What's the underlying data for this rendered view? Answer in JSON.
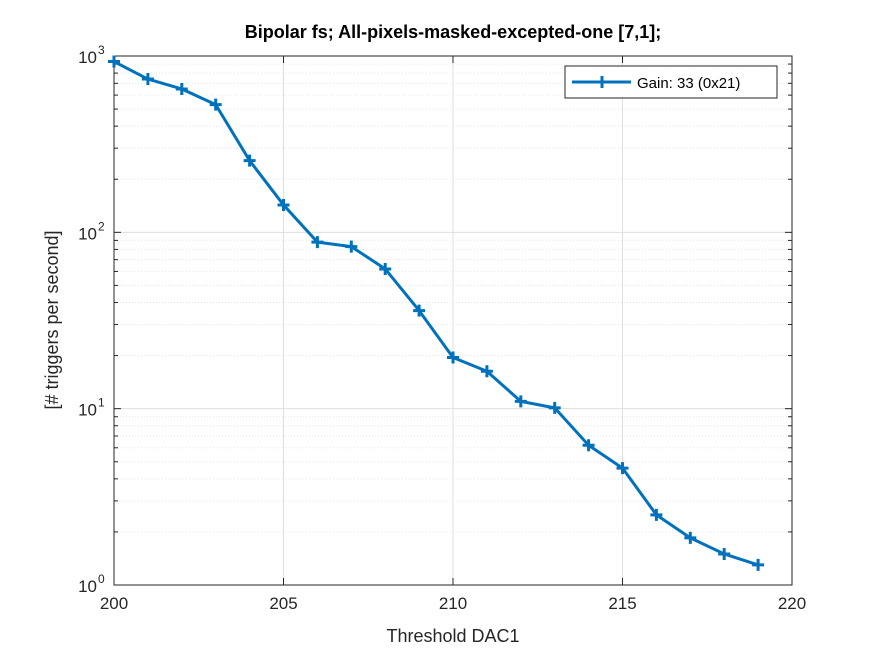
{
  "chart_data": {
    "type": "line",
    "title": "Bipolar fs; All-pixels-masked-excepted-one [7,1];",
    "xlabel": "Threshold DAC1",
    "ylabel": "[# triggers per second]",
    "xlim": [
      200,
      220
    ],
    "ylim": [
      1,
      1000
    ],
    "yscale": "log",
    "grid": true,
    "minor_grid": true,
    "legend_position": "top-right",
    "x_ticks": [
      200,
      205,
      210,
      215,
      220
    ],
    "y_tick_bases": [
      "10",
      "10",
      "10",
      "10"
    ],
    "y_tick_exponents": [
      "0",
      "1",
      "2",
      "3"
    ],
    "series": [
      {
        "name": "Gain: 33 (0x21)",
        "color": "#0072BD",
        "marker": "plus",
        "x": [
          200,
          201,
          202,
          203,
          204,
          205,
          206,
          207,
          208,
          209,
          210,
          211,
          212,
          213,
          214,
          215,
          216,
          217,
          218,
          219
        ],
        "y": [
          930,
          740,
          650,
          530,
          255,
          143,
          88,
          83,
          62,
          36,
          19.5,
          16.3,
          11,
          10.1,
          6.2,
          4.6,
          2.5,
          1.85,
          1.5,
          1.3
        ]
      }
    ]
  }
}
